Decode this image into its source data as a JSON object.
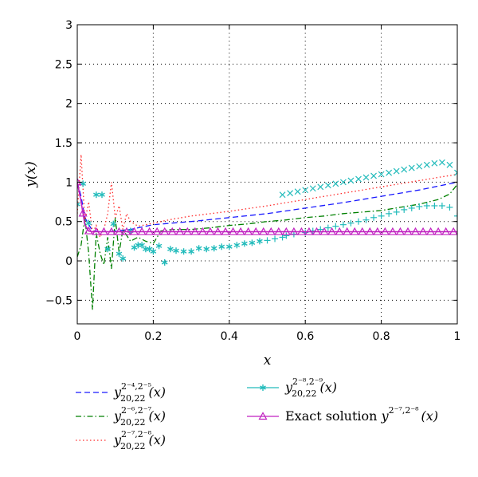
{
  "chart_data": {
    "type": "line",
    "title": "",
    "xlabel": "x",
    "ylabel": "y(x)",
    "xlim": [
      0,
      1
    ],
    "ylim": [
      -0.8,
      3
    ],
    "xticks": [
      0,
      0.2,
      0.4,
      0.6,
      0.8,
      1
    ],
    "xtick_labels": [
      "0",
      "0.2",
      "0.4",
      "0.6",
      "0.8",
      "1"
    ],
    "yticks": [
      -0.5,
      0,
      0.5,
      1,
      1.5,
      2,
      2.5,
      3
    ],
    "ytick_labels": [
      "−0.5",
      "0",
      "0.5",
      "1",
      "1.5",
      "2",
      "2.5",
      "3"
    ],
    "grid": true,
    "legend_position": "below",
    "series": [
      {
        "name": "y_{20,22}^{2^{-4},2^{-5}}(x)",
        "color": "#1a1aff",
        "style": "dashed",
        "x": [
          0,
          0.01,
          0.02,
          0.04,
          0.08,
          0.14,
          0.2,
          0.3,
          0.4,
          0.5,
          0.6,
          0.7,
          0.8,
          0.9,
          1.0
        ],
        "y": [
          1.0,
          0.82,
          0.55,
          0.38,
          0.37,
          0.4,
          0.46,
          0.5,
          0.55,
          0.6,
          0.67,
          0.74,
          0.82,
          0.9,
          1.0
        ]
      },
      {
        "name": "y_{20,22}^{2^{-6},2^{-7}}(x)",
        "color": "#008000",
        "style": "dashdot",
        "x": [
          0,
          0.01,
          0.02,
          0.03,
          0.04,
          0.05,
          0.06,
          0.07,
          0.08,
          0.09,
          0.1,
          0.11,
          0.12,
          0.14,
          0.16,
          0.18,
          0.2,
          0.22,
          0.25,
          0.3,
          0.35,
          0.4,
          0.45,
          0.5,
          0.55,
          0.6,
          0.65,
          0.7,
          0.75,
          0.8,
          0.85,
          0.9,
          0.95,
          0.98,
          1.0
        ],
        "y": [
          0.05,
          0.2,
          0.55,
          0.1,
          -0.62,
          0.35,
          0.1,
          -0.05,
          0.3,
          -0.1,
          0.55,
          0.1,
          0.4,
          0.25,
          0.3,
          0.25,
          0.22,
          0.38,
          0.4,
          0.4,
          0.42,
          0.45,
          0.47,
          0.5,
          0.52,
          0.55,
          0.57,
          0.6,
          0.62,
          0.64,
          0.68,
          0.72,
          0.78,
          0.85,
          0.97
        ]
      },
      {
        "name": "y_{20,22}^{2^{-7},2^{-8}}(x)",
        "color": "#ff2a2a",
        "style": "dotted",
        "x": [
          0,
          0.01,
          0.02,
          0.03,
          0.04,
          0.05,
          0.06,
          0.07,
          0.08,
          0.09,
          0.1,
          0.11,
          0.12,
          0.13,
          0.14,
          0.16,
          0.18,
          0.2,
          0.25,
          0.3,
          0.4,
          0.5,
          0.6,
          0.7,
          0.8,
          0.9,
          1.0
        ],
        "y": [
          0.6,
          1.35,
          0.5,
          0.75,
          0.35,
          0.45,
          0.3,
          0.4,
          0.6,
          1.0,
          0.55,
          0.7,
          0.4,
          0.6,
          0.5,
          0.44,
          0.46,
          0.48,
          0.53,
          0.57,
          0.63,
          0.7,
          0.78,
          0.86,
          0.94,
          1.02,
          1.1
        ]
      },
      {
        "name": "y_{20,22}^{2^{-8},2^{-9}}(x)",
        "color": "#22bbbb",
        "style": "markers",
        "x": [
          0,
          0.015,
          0.03,
          0.05,
          0.065,
          0.08,
          0.095,
          0.11,
          0.12,
          0.14,
          0.15,
          0.16,
          0.17,
          0.18,
          0.19,
          0.2,
          0.215,
          0.23,
          0.245,
          0.26,
          0.28,
          0.3,
          0.32,
          0.34,
          0.36,
          0.38,
          0.4,
          0.42,
          0.44,
          0.46,
          0.48,
          0.5,
          0.52,
          0.54,
          0.55,
          0.57,
          0.6,
          0.62,
          0.64,
          0.66,
          0.68,
          0.7,
          0.72,
          0.74,
          0.76,
          0.78,
          0.8,
          0.82,
          0.84,
          0.86,
          0.88,
          0.9,
          0.92,
          0.94,
          0.96,
          0.98,
          1.0
        ],
        "y": [
          0.72,
          0.98,
          0.48,
          0.84,
          0.84,
          0.15,
          0.47,
          0.09,
          0.03,
          0.38,
          0.17,
          0.2,
          0.2,
          0.15,
          0.15,
          0.12,
          0.19,
          -0.02,
          0.15,
          0.13,
          0.12,
          0.12,
          0.16,
          0.15,
          0.16,
          0.18,
          0.18,
          0.2,
          0.22,
          0.23,
          0.25,
          0.26,
          0.28,
          0.3,
          0.32,
          0.34,
          0.36,
          0.38,
          0.4,
          0.42,
          0.44,
          0.46,
          0.48,
          0.5,
          0.52,
          0.55,
          0.57,
          0.6,
          0.62,
          0.65,
          0.67,
          0.69,
          0.7,
          0.7,
          0.7,
          0.68,
          0.57
        ]
      },
      {
        "name": "Exact solution y^{2^{-7},2^{-8}}(x)",
        "color": "#c020c0",
        "style": "solid-triangle",
        "x": [
          0,
          0.01,
          0.02,
          0.03,
          0.04,
          0.06,
          0.08,
          0.1,
          0.15,
          0.2,
          0.3,
          0.4,
          0.5,
          0.6,
          0.7,
          0.8,
          0.9,
          1.0
        ],
        "y": [
          1.0,
          0.75,
          0.46,
          0.38,
          0.37,
          0.37,
          0.37,
          0.37,
          0.37,
          0.37,
          0.37,
          0.37,
          0.37,
          0.37,
          0.37,
          0.37,
          0.37,
          0.37
        ],
        "marker_x": [
          0,
          0.015,
          0.03,
          0.05,
          0.07,
          0.09,
          0.11,
          0.13,
          0.15,
          0.17,
          0.19,
          0.21,
          0.23,
          0.25,
          0.27,
          0.29,
          0.31,
          0.33,
          0.35,
          0.37,
          0.39,
          0.41,
          0.43,
          0.45,
          0.47,
          0.49,
          0.51,
          0.53,
          0.55,
          0.57,
          0.59,
          0.61,
          0.63,
          0.65,
          0.67,
          0.69,
          0.71,
          0.73,
          0.75,
          0.77,
          0.79,
          0.81,
          0.83,
          0.85,
          0.87,
          0.89,
          0.91,
          0.93,
          0.95,
          0.97,
          0.99
        ]
      }
    ],
    "extra_marks": {
      "cross_series_color": "#22bbbb",
      "cross_points": {
        "x": [
          0.54,
          0.56,
          0.58,
          0.6,
          0.62,
          0.64,
          0.66,
          0.68,
          0.7,
          0.72,
          0.74,
          0.76,
          0.78,
          0.8,
          0.82,
          0.84,
          0.86,
          0.88,
          0.9,
          0.92,
          0.94,
          0.96,
          0.98,
          1.0
        ],
        "y": [
          0.84,
          0.86,
          0.88,
          0.9,
          0.92,
          0.94,
          0.96,
          0.98,
          1.0,
          1.02,
          1.04,
          1.06,
          1.08,
          1.1,
          1.12,
          1.14,
          1.16,
          1.18,
          1.2,
          1.22,
          1.24,
          1.25,
          1.22,
          1.12
        ]
      }
    },
    "legend": [
      {
        "label_base": "y",
        "sub": "20,22",
        "sup": "2⁻⁴,2⁻⁵",
        "suffix": "(x)",
        "prefix": ""
      },
      {
        "label_base": "y",
        "sub": "20,22",
        "sup": "2⁻⁶,2⁻⁷",
        "suffix": "(x)",
        "prefix": ""
      },
      {
        "label_base": "y",
        "sub": "20,22",
        "sup": "2⁻⁷,2⁻⁸",
        "suffix": "(x)",
        "prefix": ""
      },
      {
        "label_base": "y",
        "sub": "20,22",
        "sup": "2⁻⁸,2⁻⁹",
        "suffix": "(x)",
        "prefix": ""
      },
      {
        "label_base": "y",
        "sub": "",
        "sup": "2⁻⁷,2⁻⁸",
        "suffix": "(x)",
        "prefix": "Exact solution "
      }
    ]
  }
}
